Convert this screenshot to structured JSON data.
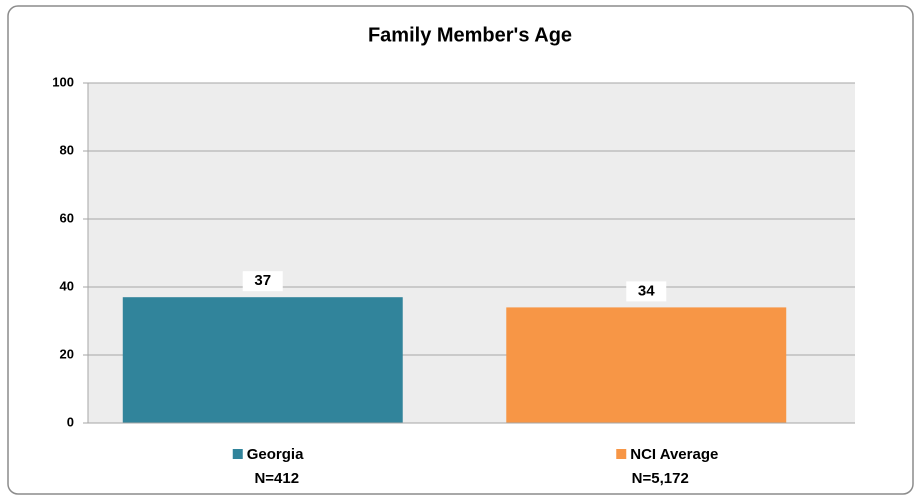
{
  "chart_data": {
    "type": "bar",
    "title": "Family Member's Age",
    "categories": [
      "Georgia",
      "NCI Average"
    ],
    "sample_sizes": [
      "N=412",
      "N=5,172"
    ],
    "values": [
      37,
      34
    ],
    "colors": [
      "#31849b",
      "#f79646"
    ],
    "ylim": [
      0,
      100
    ],
    "yticks": [
      0,
      20,
      40,
      60,
      80,
      100
    ],
    "grid": true
  }
}
